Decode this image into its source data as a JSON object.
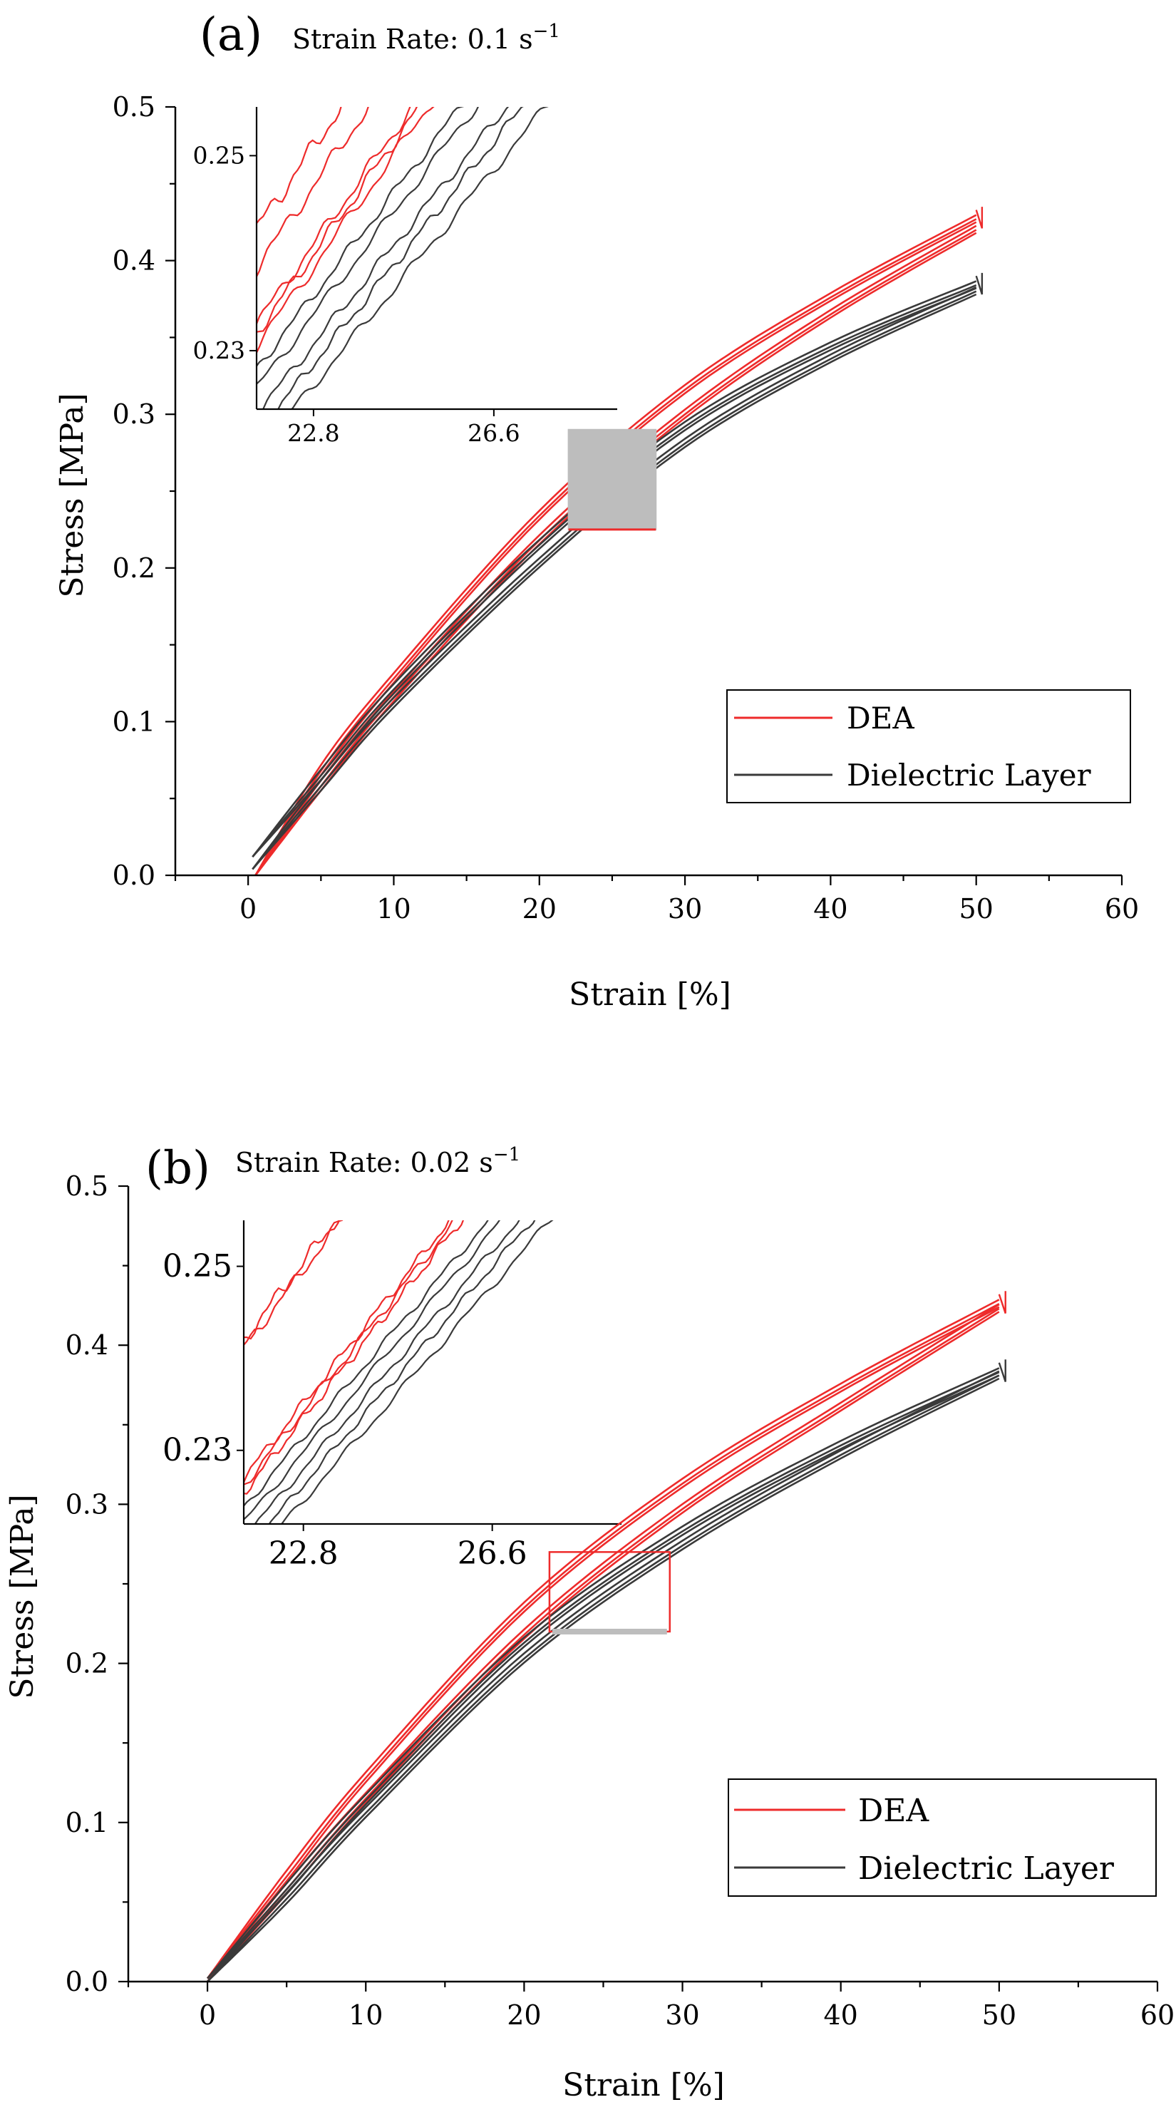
{
  "chart_data": [
    {
      "type": "line",
      "panel_label": "(a)",
      "title": "Strain Rate: 0.1 s",
      "title_sup": "−1",
      "xlabel": "Strain [%]",
      "ylabel": "Stress [MPa]",
      "xlim": [
        -5,
        60
      ],
      "ylim": [
        0,
        0.5
      ],
      "xticks": [
        0,
        10,
        20,
        30,
        40,
        50,
        60
      ],
      "yticks": [
        0.0,
        0.1,
        0.2,
        0.3,
        0.4,
        0.5
      ],
      "xtick_labels": [
        "0",
        "10",
        "20",
        "30",
        "40",
        "50",
        "60"
      ],
      "ytick_labels": [
        "0.0",
        "0.1",
        "0.2",
        "0.3",
        "0.4",
        "0.5"
      ],
      "legend": {
        "position": "bottom-right",
        "entries": [
          "DEA",
          "Dielectric Layer"
        ]
      },
      "zoom_box": {
        "x": [
          22,
          28
        ],
        "y": [
          0.225,
          0.29
        ]
      },
      "series": [
        {
          "name": "DEA",
          "color": "#ee2b2b",
          "x": [
            0.5,
            5,
            10,
            20,
            30,
            40,
            50
          ],
          "y_load": [
            0.0,
            0.068,
            0.128,
            0.234,
            0.316,
            0.376,
            0.427
          ],
          "y_unload": [
            0.0,
            0.058,
            0.116,
            0.218,
            0.3,
            0.365,
            0.42
          ],
          "cycles": 3
        },
        {
          "name": "Dielectric Layer",
          "color": "#3a3a3a",
          "x": [
            0.3,
            5,
            10,
            20,
            30,
            40,
            50
          ],
          "y_load": [
            0.012,
            0.065,
            0.121,
            0.215,
            0.292,
            0.344,
            0.384
          ],
          "y_unload": [
            0.004,
            0.058,
            0.112,
            0.203,
            0.281,
            0.336,
            0.38
          ],
          "cycles": 3
        }
      ],
      "inset": {
        "xlim": [
          21.6,
          29.2
        ],
        "ylim": [
          0.224,
          0.255
        ],
        "xticks": [
          22.8,
          26.6
        ],
        "yticks": [
          0.23,
          0.25
        ],
        "xtick_labels": [
          "22.8",
          "26.6"
        ],
        "ytick_labels": [
          "0.23",
          "0.25"
        ]
      }
    },
    {
      "type": "line",
      "panel_label": "(b)",
      "title": "Strain Rate: 0.02 s",
      "title_sup": "−1",
      "xlabel": "Strain [%]",
      "ylabel": "Stress [MPa]",
      "xlim": [
        -5,
        60
      ],
      "ylim": [
        0,
        0.5
      ],
      "xticks": [
        0,
        10,
        20,
        30,
        40,
        50,
        60
      ],
      "yticks": [
        0.0,
        0.1,
        0.2,
        0.3,
        0.4,
        0.5
      ],
      "xtick_labels": [
        "0",
        "10",
        "20",
        "30",
        "40",
        "50",
        "60"
      ],
      "ytick_labels": [
        "0.0",
        "0.1",
        "0.2",
        "0.3",
        "0.4",
        "0.5"
      ],
      "legend": {
        "position": "bottom-right",
        "entries": [
          "DEA",
          "Dielectric Layer"
        ]
      },
      "zoom_box": {
        "x": [
          21.6,
          29.2
        ],
        "y": [
          0.22,
          0.27
        ]
      },
      "series": [
        {
          "name": "DEA",
          "color": "#ee2b2b",
          "x": [
            0,
            5,
            10,
            20,
            30,
            40,
            50
          ],
          "y_load": [
            0.002,
            0.066,
            0.128,
            0.235,
            0.313,
            0.373,
            0.426
          ],
          "y_unload": [
            0.0,
            0.058,
            0.115,
            0.218,
            0.297,
            0.361,
            0.423
          ],
          "cycles": 3
        },
        {
          "name": "Dielectric Layer",
          "color": "#3a3a3a",
          "x": [
            0,
            5,
            10,
            20,
            30,
            40,
            50
          ],
          "y_load": [
            0.002,
            0.058,
            0.114,
            0.213,
            0.283,
            0.337,
            0.383
          ],
          "y_unload": [
            0.0,
            0.052,
            0.106,
            0.203,
            0.274,
            0.331,
            0.381
          ],
          "cycles": 3
        }
      ],
      "inset": {
        "xlim": [
          21.6,
          29.2
        ],
        "ylim": [
          0.222,
          0.255
        ],
        "xticks": [
          22.8,
          26.6
        ],
        "yticks": [
          0.23,
          0.25
        ],
        "xtick_labels": [
          "22.8",
          "26.6"
        ],
        "ytick_labels": [
          "0.23",
          "0.25"
        ]
      }
    }
  ]
}
